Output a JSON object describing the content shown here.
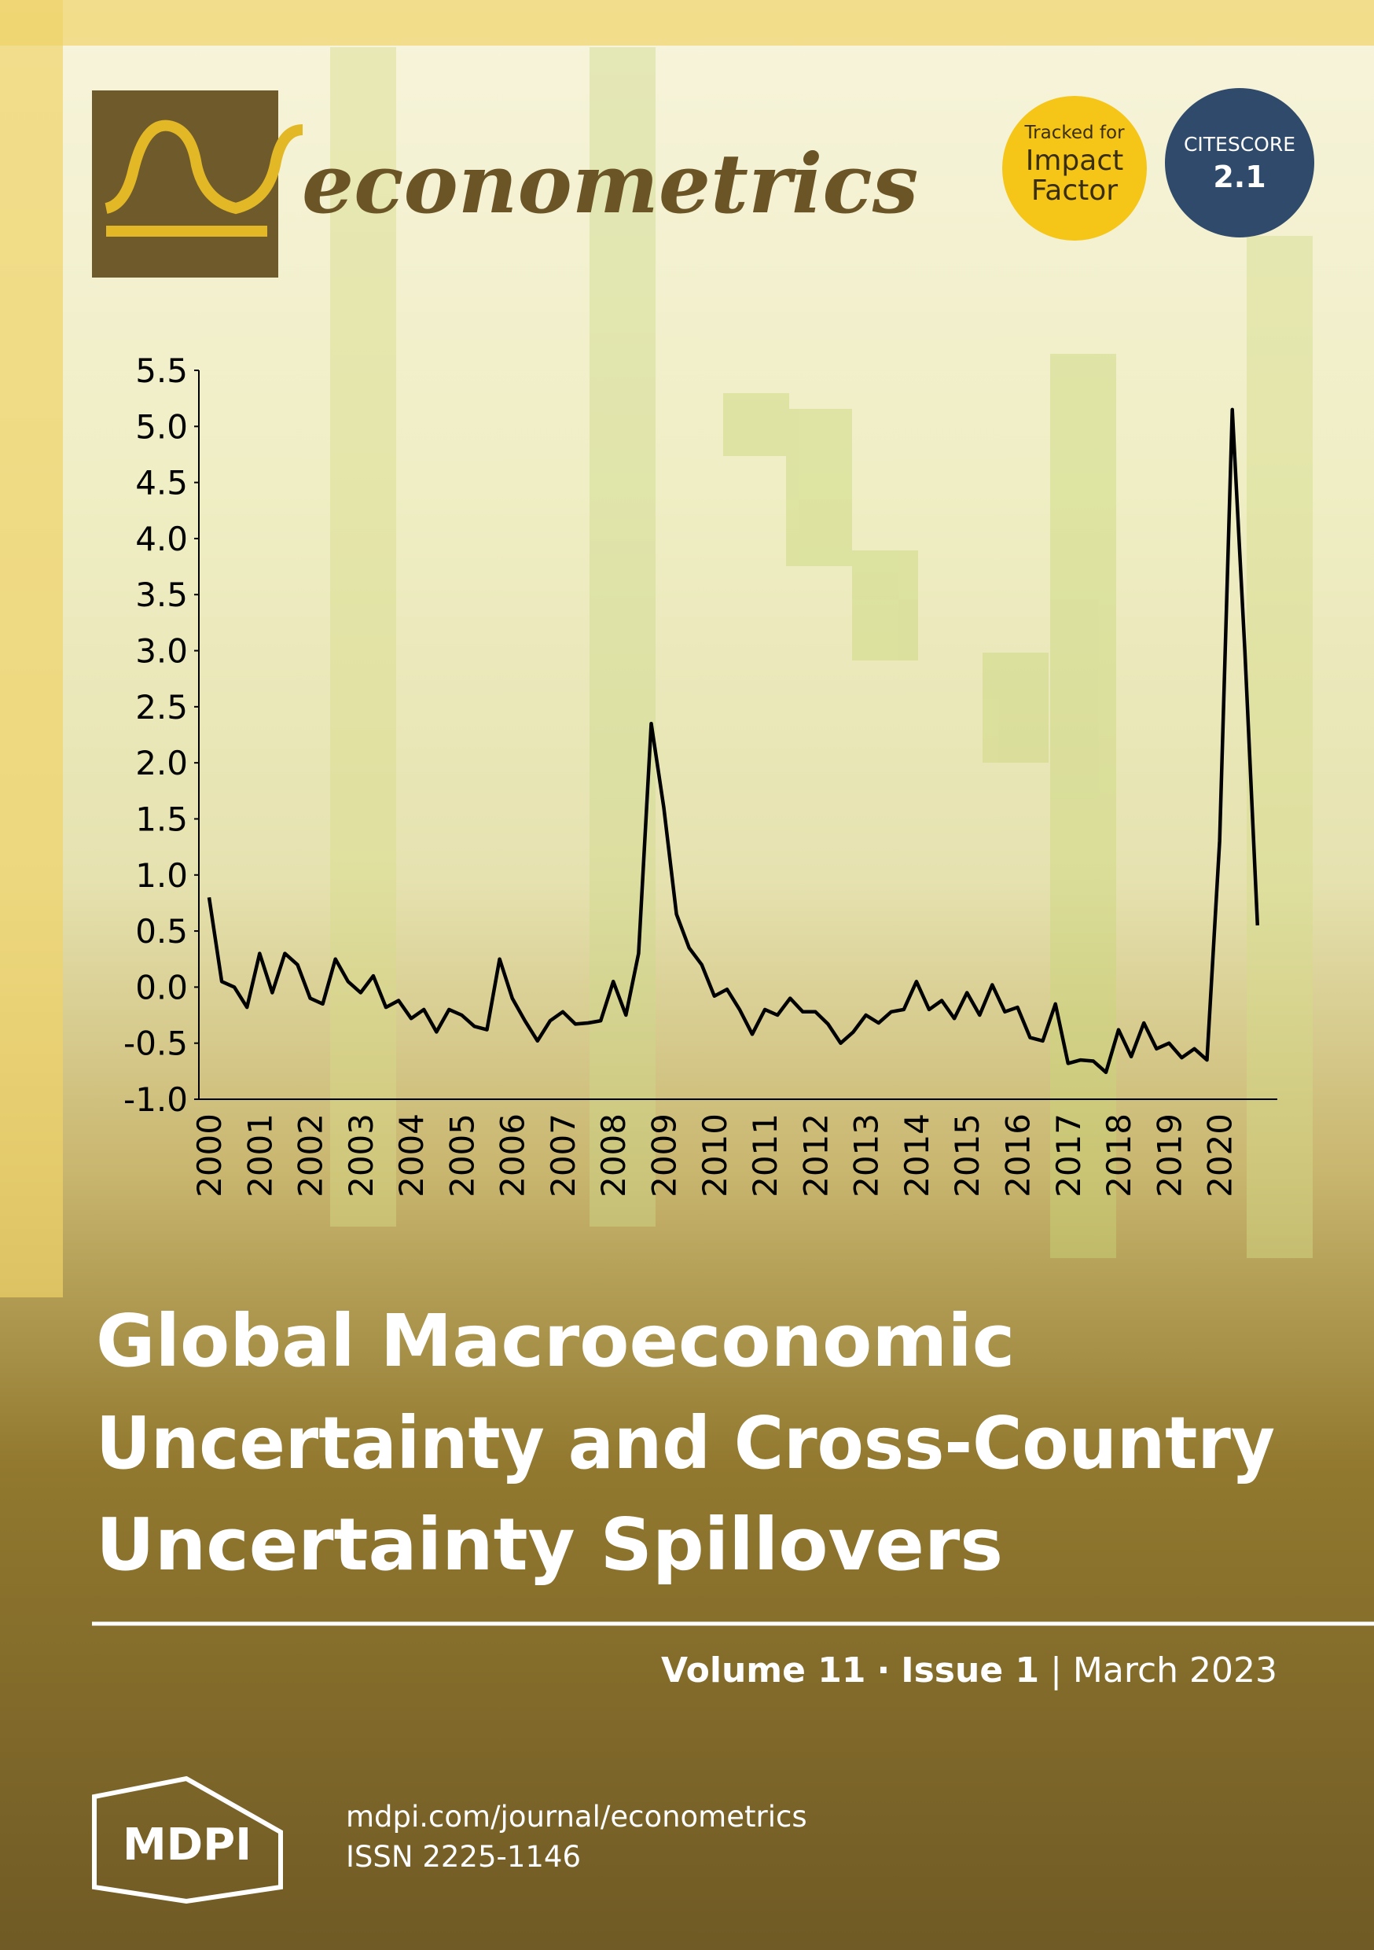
{
  "journal": "econometrics",
  "badges": {
    "tracked": [
      "Tracked for",
      "Impact",
      "Factor"
    ],
    "citescore_label": "CITESCORE",
    "citescore_value": "2.1"
  },
  "chart_data": {
    "type": "line",
    "categories": [
      "2000",
      null,
      null,
      null,
      "2001",
      null,
      null,
      null,
      "2002",
      null,
      null,
      null,
      "2003",
      null,
      null,
      null,
      "2004",
      null,
      null,
      null,
      "2005",
      null,
      null,
      null,
      "2006",
      null,
      null,
      null,
      "2007",
      null,
      null,
      null,
      "2008",
      null,
      null,
      null,
      "2009",
      null,
      null,
      null,
      "2010",
      null,
      null,
      null,
      "2011",
      null,
      null,
      null,
      "2012",
      null,
      null,
      null,
      "2013",
      null,
      null,
      null,
      "2014",
      null,
      null,
      null,
      "2015",
      null,
      null,
      null,
      "2016",
      null,
      null,
      null,
      "2017",
      null,
      null,
      null,
      "2018",
      null,
      null,
      null,
      "2019",
      null,
      null,
      null,
      "2020",
      null,
      null,
      null
    ],
    "series": [
      {
        "color": "#000000",
        "values": [
          0.8,
          0.05,
          0.0,
          -0.18,
          0.3,
          -0.05,
          0.3,
          0.2,
          -0.1,
          -0.15,
          0.25,
          0.05,
          -0.05,
          0.1,
          -0.18,
          -0.12,
          -0.28,
          -0.2,
          -0.4,
          -0.2,
          -0.25,
          -0.35,
          -0.38,
          0.25,
          -0.1,
          -0.3,
          -0.48,
          -0.3,
          -0.22,
          -0.33,
          -0.32,
          -0.3,
          0.05,
          -0.25,
          0.3,
          2.35,
          1.6,
          0.65,
          0.35,
          0.2,
          -0.08,
          -0.02,
          -0.2,
          -0.42,
          -0.2,
          -0.25,
          -0.1,
          -0.22,
          -0.22,
          -0.33,
          -0.5,
          -0.4,
          -0.25,
          -0.32,
          -0.22,
          -0.2,
          0.05,
          -0.2,
          -0.12,
          -0.28,
          -0.05,
          -0.25,
          0.02,
          -0.22,
          -0.18,
          -0.45,
          -0.48,
          -0.15,
          -0.68,
          -0.65,
          -0.66,
          -0.76,
          -0.38,
          -0.62,
          -0.32,
          -0.55,
          -0.5,
          -0.63,
          -0.55,
          -0.65,
          1.3,
          5.15,
          3.0,
          0.55
        ]
      }
    ],
    "ylim": [
      -1.0,
      5.5
    ],
    "yticks": [
      {
        "value": -1.0,
        "label": "-1.0"
      },
      -0.5,
      {
        "value": 0.0,
        "label": "0.0"
      },
      0.5,
      {
        "value": 1.0,
        "label": "1.0"
      },
      1.5,
      {
        "value": 2.0,
        "label": "2.0"
      },
      2.5,
      {
        "value": 3.0,
        "label": "3.0"
      },
      3.5,
      {
        "value": 4.0,
        "label": "4.0"
      },
      4.5,
      {
        "value": 5.0,
        "label": "5.0"
      },
      5.5
    ]
  },
  "article_title": [
    "Global Macroeconomic",
    "Uncertainty and Cross-Country",
    "Uncertainty Spillovers"
  ],
  "issue": {
    "volume": "Volume 11",
    "separator": "·",
    "issue": "Issue 1",
    "date": "March 2023"
  },
  "footer": {
    "publisher": "MDPI",
    "url": "mdpi.com/journal/econometrics",
    "issn": "ISSN 2225-1146"
  }
}
